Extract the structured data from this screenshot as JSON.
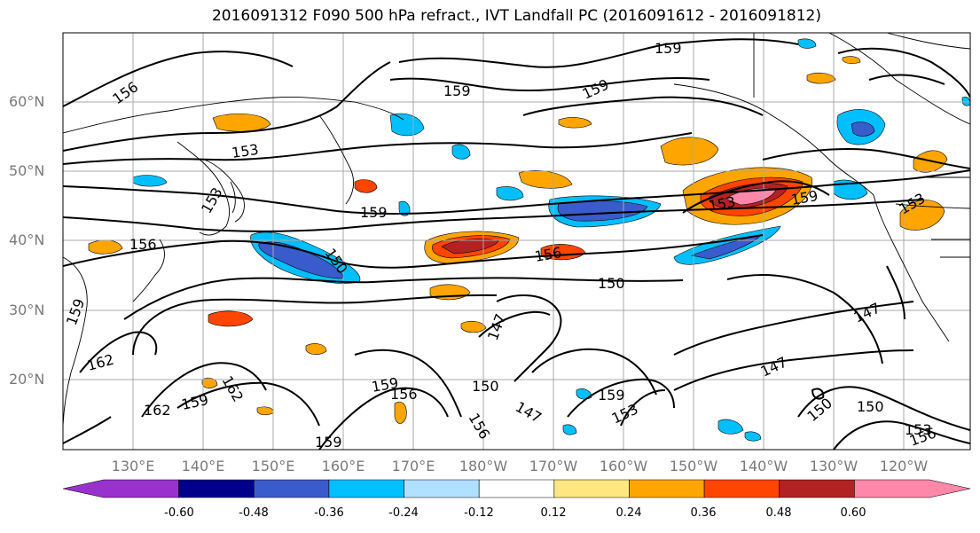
{
  "title": "2016091312 F090 500 hPa refract., IVT Landfall PC (2016091612 - 2016091812)",
  "lat_labels": [
    "60°N",
    "50°N",
    "40°N",
    "30°N",
    "20°N"
  ],
  "lon_labels": [
    "130°E",
    "140°E",
    "150°E",
    "160°E",
    "170°E",
    "180°W",
    "170°W",
    "160°W",
    "150°W",
    "140°W",
    "130°W",
    "120°W"
  ],
  "contour_labels": [
    "159",
    "156",
    "159",
    "159",
    "153",
    "159",
    "156",
    "153",
    "150",
    "153",
    "153",
    "156",
    "150",
    "147",
    "147",
    "159",
    "162",
    "162",
    "159",
    "159",
    "156",
    "150",
    "147",
    "156",
    "159",
    "153",
    "147",
    "150",
    "150",
    "153",
    "156",
    "159",
    "162",
    "159"
  ],
  "colorbar": {
    "ticks": [
      "-0.60",
      "-0.48",
      "-0.36",
      "-0.24",
      "-0.12",
      "0.12",
      "0.24",
      "0.36",
      "0.48",
      "0.60"
    ],
    "colors": [
      "#9932CC",
      "#00008B",
      "#3A5BCC",
      "#00BFFF",
      "#B0E0FF",
      "#FFFFFF",
      "#FFE680",
      "#FFA500",
      "#FF4500",
      "#B22222",
      "#FF88AA"
    ]
  }
}
